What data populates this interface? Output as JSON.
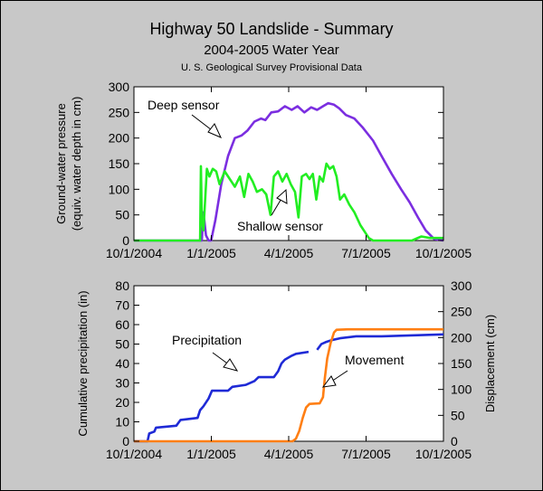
{
  "header": {
    "title": "Highway 50 Landslide - Summary",
    "subtitle": "2004-2005 Water Year",
    "source": "U. S. Geological Survey Provisional Data"
  },
  "chart_data": [
    {
      "type": "line",
      "ylabel": [
        "Ground-water pressure",
        "(equiv. water depth in cm)"
      ],
      "xlabel": "",
      "x_ticks": [
        "10/1/2004",
        "1/1/2005",
        "4/1/2005",
        "7/1/2005",
        "10/1/2005"
      ],
      "xlim": [
        "2004-10-01",
        "2005-10-01"
      ],
      "ylim": [
        0,
        300
      ],
      "y_ticks": [
        "0",
        "50",
        "100",
        "150",
        "200",
        "250",
        "300"
      ],
      "grid": false,
      "annotations": [
        "Deep sensor",
        "Shallow sensor"
      ],
      "series": [
        {
          "name": "Deep sensor",
          "color": "#7b2ee0",
          "points": [
            [
              "2004-10-01",
              0
            ],
            [
              "2004-12-20",
              0
            ],
            [
              "2004-12-22",
              55
            ],
            [
              "2004-12-25",
              10
            ],
            [
              "2004-12-28",
              0
            ],
            [
              "2004-12-31",
              0
            ],
            [
              "2005-01-05",
              40
            ],
            [
              "2005-01-12",
              110
            ],
            [
              "2005-01-20",
              165
            ],
            [
              "2005-01-28",
              200
            ],
            [
              "2005-02-05",
              205
            ],
            [
              "2005-02-12",
              215
            ],
            [
              "2005-02-20",
              232
            ],
            [
              "2005-02-28",
              238
            ],
            [
              "2005-03-05",
              235
            ],
            [
              "2005-03-12",
              250
            ],
            [
              "2005-03-20",
              252
            ],
            [
              "2005-03-28",
              262
            ],
            [
              "2005-04-05",
              255
            ],
            [
              "2005-04-12",
              262
            ],
            [
              "2005-04-20",
              250
            ],
            [
              "2005-04-28",
              260
            ],
            [
              "2005-05-05",
              255
            ],
            [
              "2005-05-12",
              262
            ],
            [
              "2005-05-18",
              268
            ],
            [
              "2005-05-25",
              265
            ],
            [
              "2005-05-31",
              258
            ],
            [
              "2005-06-08",
              245
            ],
            [
              "2005-06-18",
              238
            ],
            [
              "2005-06-28",
              220
            ],
            [
              "2005-07-10",
              195
            ],
            [
              "2005-07-20",
              165
            ],
            [
              "2005-08-01",
              130
            ],
            [
              "2005-08-12",
              100
            ],
            [
              "2005-08-22",
              75
            ],
            [
              "2005-09-01",
              45
            ],
            [
              "2005-09-10",
              20
            ],
            [
              "2005-09-20",
              3
            ],
            [
              "2005-10-01",
              0
            ]
          ]
        },
        {
          "name": "Shallow sensor",
          "color": "#22ee22",
          "points": [
            [
              "2004-10-01",
              0
            ],
            [
              "2004-12-18",
              0
            ],
            [
              "2004-12-19",
              145
            ],
            [
              "2004-12-20",
              40
            ],
            [
              "2004-12-22",
              20
            ],
            [
              "2004-12-26",
              140
            ],
            [
              "2004-12-29",
              125
            ],
            [
              "2005-01-02",
              140
            ],
            [
              "2005-01-06",
              135
            ],
            [
              "2005-01-10",
              110
            ],
            [
              "2005-01-16",
              135
            ],
            [
              "2005-01-22",
              120
            ],
            [
              "2005-01-28",
              105
            ],
            [
              "2005-02-03",
              125
            ],
            [
              "2005-02-08",
              85
            ],
            [
              "2005-02-13",
              130
            ],
            [
              "2005-02-18",
              115
            ],
            [
              "2005-02-23",
              95
            ],
            [
              "2005-03-01",
              100
            ],
            [
              "2005-03-06",
              90
            ],
            [
              "2005-03-11",
              50
            ],
            [
              "2005-03-15",
              125
            ],
            [
              "2005-03-20",
              135
            ],
            [
              "2005-03-25",
              115
            ],
            [
              "2005-03-30",
              130
            ],
            [
              "2005-04-04",
              110
            ],
            [
              "2005-04-09",
              95
            ],
            [
              "2005-04-13",
              45
            ],
            [
              "2005-04-17",
              125
            ],
            [
              "2005-04-22",
              130
            ],
            [
              "2005-04-26",
              120
            ],
            [
              "2005-04-30",
              130
            ],
            [
              "2005-05-04",
              80
            ],
            [
              "2005-05-08",
              125
            ],
            [
              "2005-05-12",
              115
            ],
            [
              "2005-05-16",
              150
            ],
            [
              "2005-05-20",
              140
            ],
            [
              "2005-05-24",
              145
            ],
            [
              "2005-05-28",
              125
            ],
            [
              "2005-06-01",
              80
            ],
            [
              "2005-06-06",
              90
            ],
            [
              "2005-06-12",
              70
            ],
            [
              "2005-06-18",
              55
            ],
            [
              "2005-06-25",
              30
            ],
            [
              "2005-07-05",
              5
            ],
            [
              "2005-07-10",
              0
            ],
            [
              "2005-08-25",
              0
            ],
            [
              "2005-09-05",
              8
            ],
            [
              "2005-09-15",
              5
            ],
            [
              "2005-10-01",
              5
            ]
          ]
        }
      ]
    },
    {
      "type": "line",
      "ylabel": "Cumulative precipitation (in)",
      "y2label": "Displacement (cm)",
      "xlabel": "",
      "x_ticks": [
        "10/1/2004",
        "1/1/2005",
        "4/1/2005",
        "7/1/2005",
        "10/1/2005"
      ],
      "xlim": [
        "2004-10-01",
        "2005-10-01"
      ],
      "ylim": [
        0,
        80
      ],
      "y_ticks": [
        "0",
        "10",
        "20",
        "30",
        "40",
        "50",
        "60",
        "70",
        "80"
      ],
      "y2lim": [
        0,
        300
      ],
      "y2_ticks": [
        "0",
        "50",
        "100",
        "150",
        "200",
        "250",
        "300"
      ],
      "grid": false,
      "annotations": [
        "Precipitation",
        "Movement"
      ],
      "series": [
        {
          "name": "Precipitation",
          "axis": "left",
          "color": "#1f2ad6",
          "points": [
            [
              "2004-10-01",
              0
            ],
            [
              "2004-10-17",
              0
            ],
            [
              "2004-10-19",
              4
            ],
            [
              "2004-10-25",
              5
            ],
            [
              "2004-10-27",
              7
            ],
            [
              "2004-11-20",
              8
            ],
            [
              "2004-11-25",
              11
            ],
            [
              "2004-12-15",
              12
            ],
            [
              "2004-12-18",
              16
            ],
            [
              "2004-12-22",
              18
            ],
            [
              "2004-12-28",
              22
            ],
            [
              "2005-01-01",
              26
            ],
            [
              "2005-01-20",
              26
            ],
            [
              "2005-01-25",
              28
            ],
            [
              "2005-02-10",
              29
            ],
            [
              "2005-02-20",
              31
            ],
            [
              "2005-02-25",
              33
            ],
            [
              "2005-03-15",
              33
            ],
            [
              "2005-03-20",
              36
            ],
            [
              "2005-03-24",
              40
            ],
            [
              "2005-03-28",
              42
            ],
            [
              "2005-04-05",
              44
            ],
            [
              "2005-04-10",
              45
            ],
            [
              "2005-04-25",
              46
            ]
          ],
          "points_b": [
            [
              "2005-05-05",
              47
            ],
            [
              "2005-05-10",
              50
            ],
            [
              "2005-05-15",
              51
            ],
            [
              "2005-05-22",
              52
            ],
            [
              "2005-06-01",
              53
            ],
            [
              "2005-06-20",
              54
            ],
            [
              "2005-07-20",
              54
            ],
            [
              "2005-10-01",
              55
            ]
          ]
        },
        {
          "name": "Movement",
          "axis": "right",
          "color": "#ff7f14",
          "points": [
            [
              "2004-10-01",
              0
            ],
            [
              "2005-04-06",
              0
            ],
            [
              "2005-04-10",
              5
            ],
            [
              "2005-04-14",
              20
            ],
            [
              "2005-04-18",
              45
            ],
            [
              "2005-04-22",
              65
            ],
            [
              "2005-04-26",
              72
            ],
            [
              "2005-05-08",
              73
            ],
            [
              "2005-05-12",
              85
            ],
            [
              "2005-05-14",
              120
            ],
            [
              "2005-05-17",
              160
            ],
            [
              "2005-05-21",
              190
            ],
            [
              "2005-05-25",
              210
            ],
            [
              "2005-05-28",
              215
            ],
            [
              "2005-06-10",
              216
            ],
            [
              "2005-10-01",
              216
            ]
          ]
        }
      ]
    }
  ]
}
